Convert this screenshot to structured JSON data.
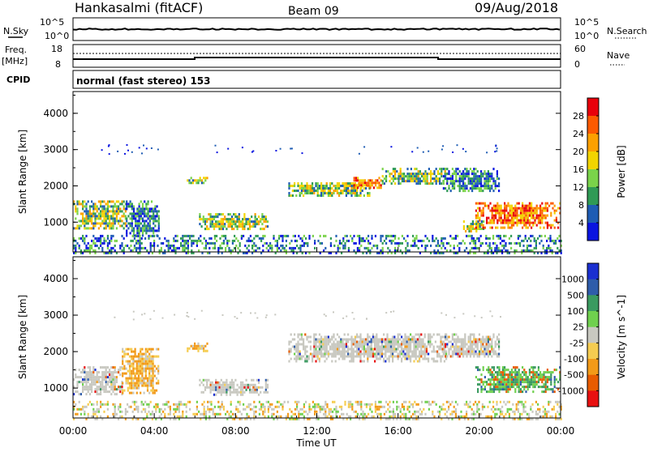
{
  "header": {
    "title": "Hankasalmi (fitACF)",
    "beam": "Beam 09",
    "date": "09/Aug/2018"
  },
  "nsky_panel": {
    "left_label": "N.Sky",
    "right_label": "N.Search",
    "left_ticks": [
      "10^5",
      "10^0"
    ],
    "right_ticks": [
      "10^5",
      "10^0"
    ]
  },
  "freq_panel": {
    "left_label_1": "Freq.",
    "left_label_2": "[MHz]",
    "right_label": "Nave",
    "left_ticks": [
      "18",
      "8"
    ],
    "right_ticks": [
      "60",
      "0"
    ]
  },
  "cpid_panel": {
    "label": "CPID",
    "text": "normal (fast stereo) 153"
  },
  "x_axis": {
    "label": "Time UT",
    "ticks": [
      "00:00",
      "04:00",
      "08:00",
      "12:00",
      "16:00",
      "20:00",
      "00:00"
    ],
    "range_hours": [
      0,
      24
    ]
  },
  "chart_data": [
    {
      "type": "heatmap",
      "name": "power",
      "ylabel": "Slant Range [km]",
      "yticks": [
        "4000",
        "3000",
        "2000",
        "1000"
      ],
      "ylim": [
        180,
        4600
      ],
      "colorbar_label": "Power [dB]",
      "colorbar_ticks": [
        "28",
        "24",
        "20",
        "16",
        "12",
        "8",
        "4"
      ],
      "colorbar_colors": [
        "#e8000b",
        "#fc5a00",
        "#fca000",
        "#f2d400",
        "#7ad34a",
        "#2f9a55",
        "#1e5cb4",
        "#0a14e0"
      ],
      "echo_regions": [
        {
          "t": [
            0.0,
            2.6
          ],
          "r": [
            850,
            1600
          ],
          "level": "mid"
        },
        {
          "t": [
            2.6,
            4.2
          ],
          "r": [
            650,
            1600
          ],
          "level": "low"
        },
        {
          "t": [
            5.6,
            6.6
          ],
          "r": [
            2050,
            2250
          ],
          "level": "mid"
        },
        {
          "t": [
            6.2,
            9.6
          ],
          "r": [
            800,
            1250
          ],
          "level": "mid"
        },
        {
          "t": [
            10.6,
            14.6
          ],
          "r": [
            1750,
            2100
          ],
          "level": "mid"
        },
        {
          "t": [
            13.8,
            15.2
          ],
          "r": [
            1950,
            2250
          ],
          "level": "high"
        },
        {
          "t": [
            15.2,
            18.4
          ],
          "r": [
            2050,
            2500
          ],
          "level": "mid"
        },
        {
          "t": [
            18.2,
            21.0
          ],
          "r": [
            1850,
            2500
          ],
          "level": "low"
        },
        {
          "t": [
            19.2,
            20.2
          ],
          "r": [
            750,
            1050
          ],
          "level": "mid"
        },
        {
          "t": [
            19.8,
            24.0
          ],
          "r": [
            850,
            1550
          ],
          "level": "high"
        },
        {
          "t": [
            0.0,
            24.0
          ],
          "r": [
            180,
            650
          ],
          "level": "low"
        }
      ]
    },
    {
      "type": "heatmap",
      "name": "velocity",
      "ylabel": "Slant Range [km]",
      "yticks": [
        "4000",
        "3000",
        "2000",
        "1000"
      ],
      "ylim": [
        180,
        4600
      ],
      "colorbar_label": "Velocity [m s^-1]",
      "colorbar_ticks": [
        "1000",
        "500",
        "100",
        "25",
        "-25",
        "-100",
        "-500",
        "-1000"
      ],
      "colorbar_colors": [
        "#1a2fd0",
        "#2e5caa",
        "#3a9a60",
        "#6fd04e",
        "#c8c8c0",
        "#f5cc50",
        "#f29a18",
        "#e85c00",
        "#e81010"
      ],
      "echo_regions": [
        {
          "t": [
            0.0,
            2.4
          ],
          "r": [
            850,
            1600
          ],
          "class": "ground"
        },
        {
          "t": [
            2.4,
            4.2
          ],
          "r": [
            900,
            2100
          ],
          "class": "negative"
        },
        {
          "t": [
            5.6,
            6.6
          ],
          "r": [
            2050,
            2250
          ],
          "class": "negative"
        },
        {
          "t": [
            6.2,
            9.6
          ],
          "r": [
            800,
            1250
          ],
          "class": "ground"
        },
        {
          "t": [
            10.6,
            18.4
          ],
          "r": [
            1750,
            2500
          ],
          "class": "ground"
        },
        {
          "t": [
            18.2,
            21.0
          ],
          "r": [
            1850,
            2500
          ],
          "class": "ground"
        },
        {
          "t": [
            19.8,
            24.0
          ],
          "r": [
            900,
            1600
          ],
          "class": "positive"
        },
        {
          "t": [
            0.0,
            24.0
          ],
          "r": [
            180,
            650
          ],
          "class": "mixed"
        }
      ]
    }
  ],
  "colors": {
    "axis": "#000000",
    "background": "#ffffff"
  }
}
